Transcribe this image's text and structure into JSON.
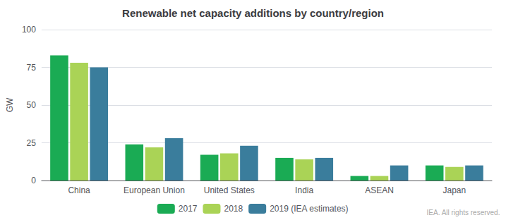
{
  "chart_data": {
    "type": "bar",
    "title": "Renewable net capacity additions by country/region",
    "categories": [
      "China",
      "European Union",
      "United States",
      "India",
      "ASEAN",
      "Japan"
    ],
    "series": [
      {
        "name": "2017",
        "color": "#1aab54",
        "values": [
          83,
          24,
          17,
          15,
          3,
          10
        ]
      },
      {
        "name": "2018",
        "color": "#aad356",
        "values": [
          78,
          22,
          18,
          14,
          3,
          9
        ]
      },
      {
        "name": "2019 (IEA estimates)",
        "color": "#3a7d9c",
        "values": [
          75,
          28,
          23,
          15,
          10,
          10
        ]
      }
    ],
    "ylabel": "GW",
    "ylim": [
      0,
      100
    ],
    "yticks": [
      0,
      25,
      50,
      75,
      100
    ],
    "grid": true,
    "legend": "bottom",
    "annotations": [
      "IEA. All rights reserved."
    ]
  }
}
